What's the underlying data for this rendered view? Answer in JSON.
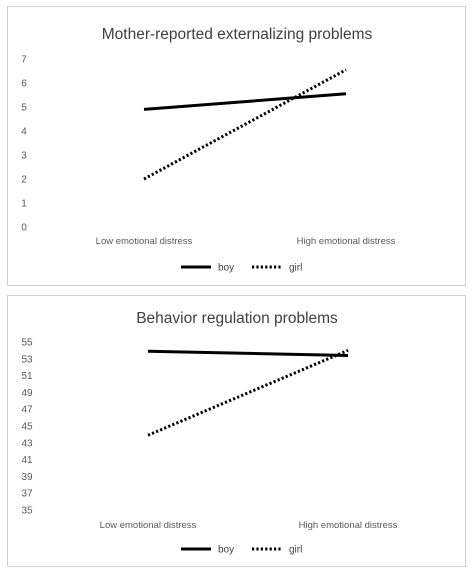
{
  "chart_data": [
    {
      "type": "line",
      "title": "Mother-reported externalizing problems",
      "categories": [
        "Low emotional distress",
        "High emotional distress"
      ],
      "series": [
        {
          "name": "boy",
          "values": [
            4.9,
            5.55
          ],
          "style": "solid"
        },
        {
          "name": "girl",
          "values": [
            2.0,
            6.55
          ],
          "style": "dotted"
        }
      ],
      "ylim": [
        0,
        7
      ],
      "yticks": [
        "0",
        "1",
        "2",
        "3",
        "4",
        "5",
        "6",
        "7"
      ],
      "grid": false,
      "legend": "bottom",
      "line_color": "#000000"
    },
    {
      "type": "line",
      "title": "Behavior regulation problems",
      "categories": [
        "Low emotional distress",
        "High emotional distress"
      ],
      "series": [
        {
          "name": "boy",
          "values": [
            53.9,
            53.4
          ],
          "style": "solid"
        },
        {
          "name": "girl",
          "values": [
            43.9,
            54.0
          ],
          "style": "dotted"
        }
      ],
      "ylim": [
        35,
        55
      ],
      "yticks": [
        "35",
        "37",
        "39",
        "41",
        "43",
        "45",
        "47",
        "49",
        "51",
        "53",
        "55"
      ],
      "grid": false,
      "legend": "bottom",
      "line_color": "#000000"
    }
  ]
}
